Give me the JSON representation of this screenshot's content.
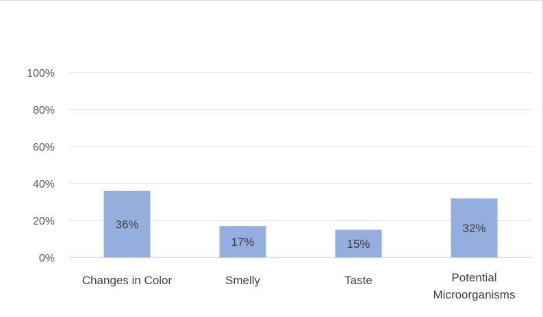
{
  "chart_data": {
    "type": "bar",
    "categories": [
      "Changes in Color",
      "Smelly",
      "Taste",
      "Potential Microorganisms"
    ],
    "category_lines": [
      [
        "Changes in Color"
      ],
      [
        "Smelly"
      ],
      [
        "Taste"
      ],
      [
        "Potential",
        "Microorganisms"
      ]
    ],
    "values": [
      36,
      17,
      15,
      32
    ],
    "data_labels": [
      "36%",
      "17%",
      "15%",
      "32%"
    ],
    "yticks": [
      "0%",
      "20%",
      "40%",
      "60%",
      "80%",
      "100%"
    ],
    "ylim": [
      0,
      100
    ],
    "grid": true,
    "bar_color": "#94aedd",
    "title": "",
    "xlabel": "",
    "ylabel": ""
  }
}
